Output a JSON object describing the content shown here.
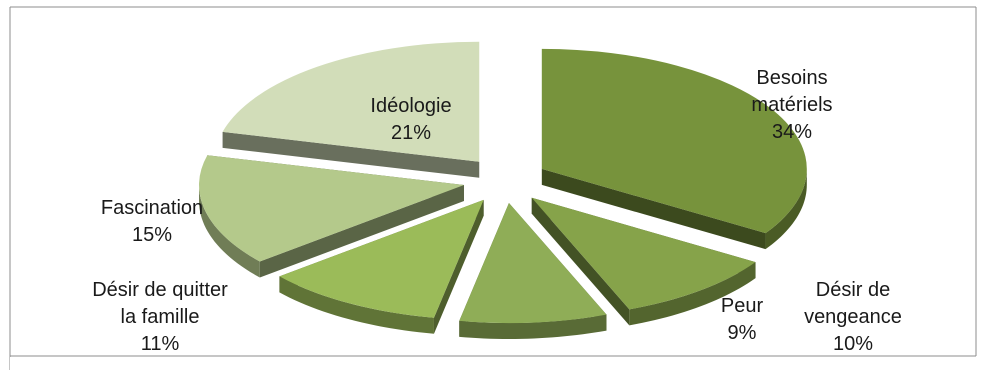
{
  "chart_data": {
    "type": "pie",
    "title": "",
    "legend": "none",
    "exploded": true,
    "style": "3d",
    "slices": [
      {
        "label_lines": [
          "Besoins",
          "matériels"
        ],
        "percent_label": "34%",
        "value": 34,
        "color": "#77933c"
      },
      {
        "label_lines": [
          "Désir de",
          "vengeance"
        ],
        "percent_label": "10%",
        "value": 10,
        "color": "#86a34a"
      },
      {
        "label_lines": [
          "Peur"
        ],
        "percent_label": "9%",
        "value": 9,
        "color": "#8fad57"
      },
      {
        "label_lines": [
          "Désir de quitter",
          "la famille"
        ],
        "percent_label": "11%",
        "value": 11,
        "color": "#9bbb59"
      },
      {
        "label_lines": [
          "Fascination"
        ],
        "percent_label": "15%",
        "value": 15,
        "color": "#b4c98b"
      },
      {
        "label_lines": [
          "Idéologie"
        ],
        "percent_label": "21%",
        "value": 21,
        "color": "#d2ddb9"
      }
    ]
  }
}
